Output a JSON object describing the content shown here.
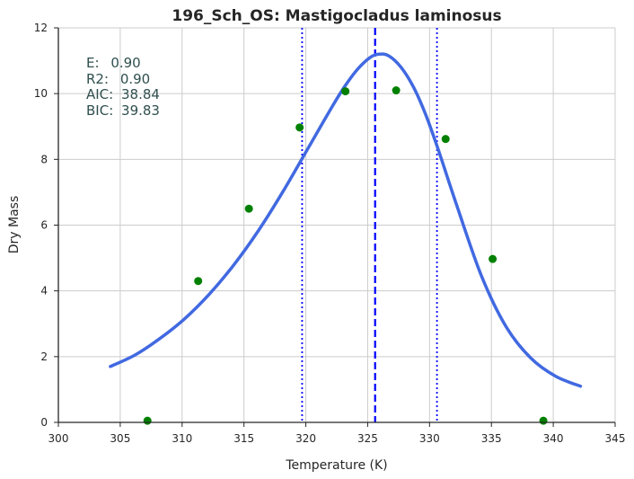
{
  "chart_data": {
    "type": "line",
    "title": "196_Sch_OS: Mastigocladus laminosus",
    "xlabel": "Temperature (K)",
    "ylabel": "Dry Mass",
    "xlim": [
      300,
      345
    ],
    "ylim": [
      0,
      12
    ],
    "xticks": [
      "300",
      "305",
      "310",
      "315",
      "320",
      "325",
      "330",
      "335",
      "340",
      "345"
    ],
    "yticks": [
      "0",
      "2",
      "4",
      "6",
      "8",
      "10",
      "12"
    ],
    "grid": true,
    "stats": [
      {
        "label": "E:",
        "value": "0.90"
      },
      {
        "label": "R2:",
        "value": "0.90"
      },
      {
        "label": "AIC:",
        "value": "38.84"
      },
      {
        "label": "BIC:",
        "value": "39.83"
      }
    ],
    "points": {
      "color": "#008000",
      "x": [
        307.2,
        311.3,
        315.4,
        319.5,
        323.2,
        327.3,
        331.3,
        335.1,
        339.2
      ],
      "y": [
        0.05,
        4.3,
        6.5,
        8.97,
        10.07,
        10.1,
        8.62,
        4.97,
        0.05
      ]
    },
    "fit": {
      "color": "#4169e1",
      "x": [
        304.2,
        306.2,
        308.2,
        310.2,
        312.2,
        314.2,
        316.2,
        318.2,
        320.2,
        322.2,
        323.2,
        324.2,
        325.2,
        325.9,
        326.7,
        327.7,
        328.7,
        329.7,
        330.7,
        332.2,
        334.2,
        336.2,
        338.2,
        340.2,
        342.2
      ],
      "y": [
        1.7,
        2.05,
        2.55,
        3.15,
        3.9,
        4.8,
        5.85,
        7.05,
        8.35,
        9.65,
        10.25,
        10.75,
        11.1,
        11.2,
        11.15,
        10.8,
        10.2,
        9.35,
        8.3,
        6.6,
        4.45,
        2.9,
        1.95,
        1.4,
        1.1
      ]
    },
    "vlines": [
      {
        "x": 325.6,
        "style": "dashed",
        "color": "#0000ff"
      },
      {
        "x": 319.7,
        "style": "dotted",
        "color": "#0000ff"
      },
      {
        "x": 330.6,
        "style": "dotted",
        "color": "#0000ff"
      }
    ]
  }
}
